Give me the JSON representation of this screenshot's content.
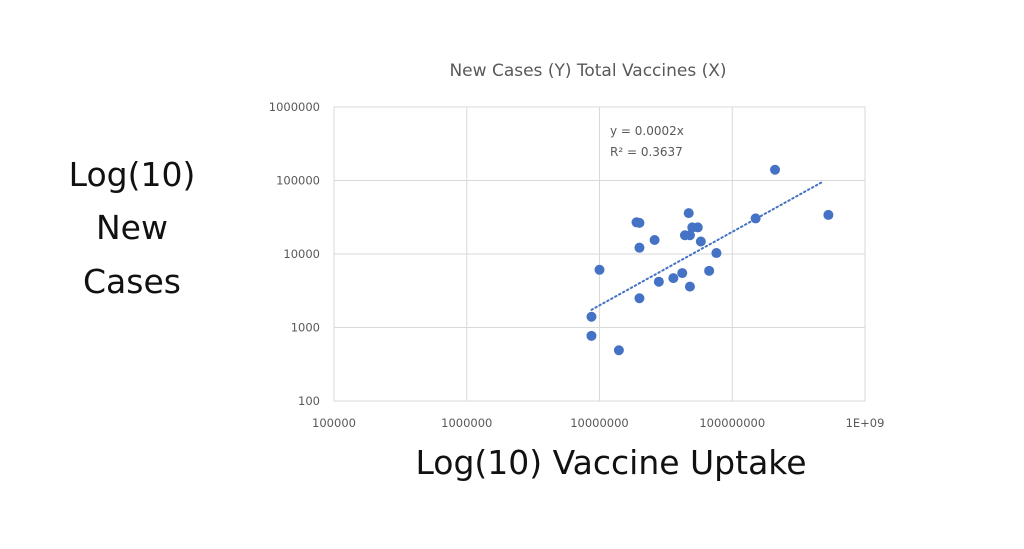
{
  "chart_data": {
    "type": "scatter",
    "title": "New Cases (Y) Total Vaccines (X)",
    "xlabel": "Log(10) Vaccine Uptake",
    "ylabel_lines": [
      "Log(10)",
      "New",
      "Cases"
    ],
    "x_scale": "log",
    "y_scale": "log",
    "xlim": [
      100000,
      1000000000
    ],
    "ylim": [
      100,
      1000000
    ],
    "x_ticks": [
      100000,
      1000000,
      10000000,
      100000000,
      1000000000
    ],
    "x_tick_labels": [
      "100000",
      "1000000",
      "10000000",
      "100000000",
      "1E+09"
    ],
    "y_ticks": [
      100,
      1000,
      10000,
      100000,
      1000000
    ],
    "y_tick_labels": [
      "100",
      "1000",
      "10000",
      "100000",
      "1000000"
    ],
    "grid": true,
    "legend": "none",
    "colors": {
      "points": "#4472C4",
      "trendline": "#4472C4",
      "grid": "#D9D9D9",
      "text": "#595959"
    },
    "trendline": {
      "equation": "y = 0.0002x",
      "r_squared": "R² = 0.3637",
      "coefficient": 0.0002,
      "x_range": [
        8700000,
        470000000
      ]
    },
    "points": [
      {
        "x": 8700000,
        "y": 1400
      },
      {
        "x": 8700000,
        "y": 770
      },
      {
        "x": 10000000,
        "y": 6100
      },
      {
        "x": 14000000,
        "y": 490
      },
      {
        "x": 19000000,
        "y": 27000
      },
      {
        "x": 20000000,
        "y": 26500
      },
      {
        "x": 20000000,
        "y": 12200
      },
      {
        "x": 20000000,
        "y": 2500
      },
      {
        "x": 26000000,
        "y": 15500
      },
      {
        "x": 28000000,
        "y": 4200
      },
      {
        "x": 36000000,
        "y": 4700
      },
      {
        "x": 42000000,
        "y": 5500
      },
      {
        "x": 44000000,
        "y": 18000
      },
      {
        "x": 47000000,
        "y": 36000
      },
      {
        "x": 48000000,
        "y": 18000
      },
      {
        "x": 48000000,
        "y": 3600
      },
      {
        "x": 50000000,
        "y": 23000
      },
      {
        "x": 55000000,
        "y": 23000
      },
      {
        "x": 58000000,
        "y": 14800
      },
      {
        "x": 67000000,
        "y": 5900
      },
      {
        "x": 76000000,
        "y": 10300
      },
      {
        "x": 150000000,
        "y": 30500
      },
      {
        "x": 210000000,
        "y": 140000
      },
      {
        "x": 530000000,
        "y": 34000
      }
    ]
  }
}
